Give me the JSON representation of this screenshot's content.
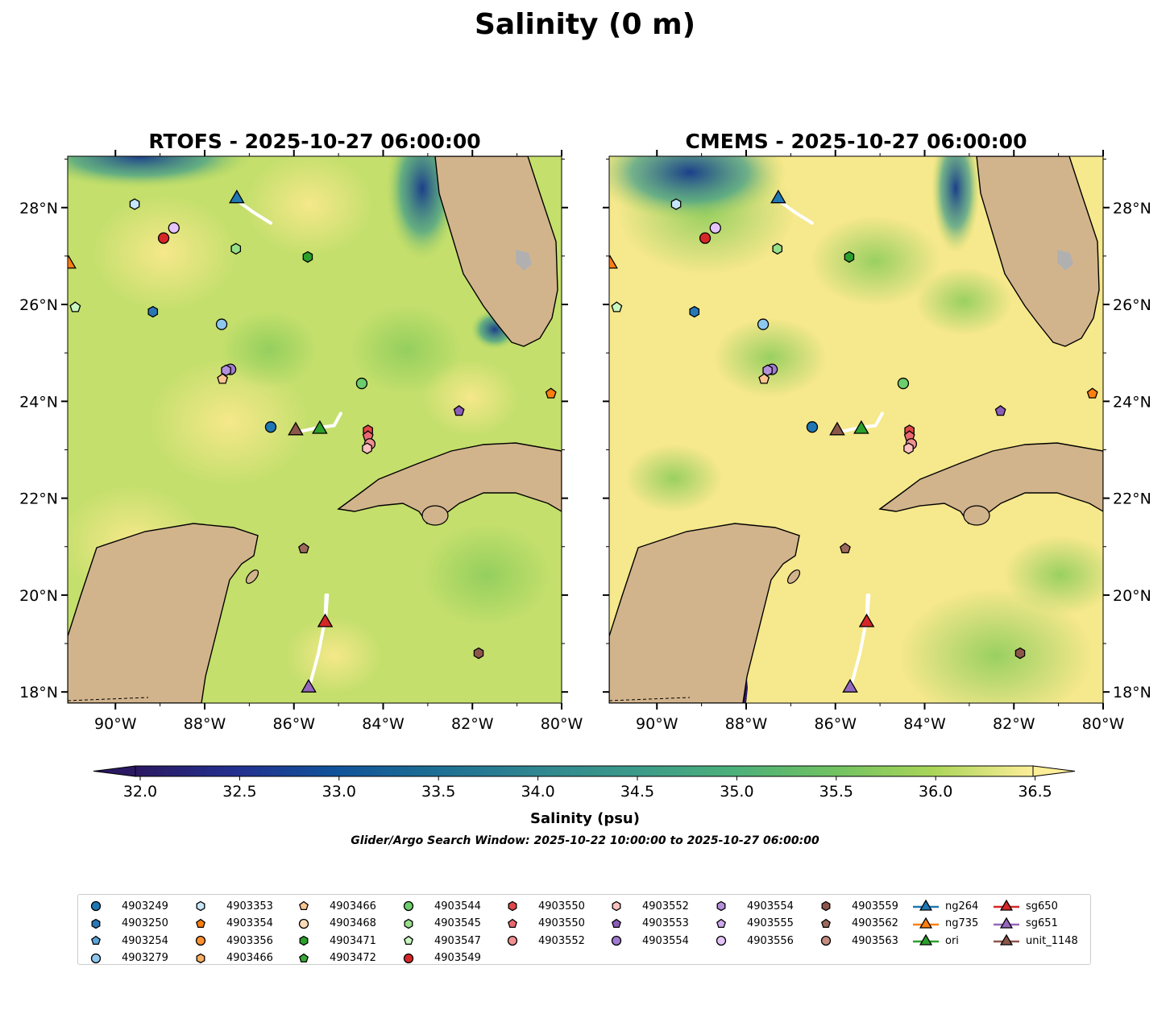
{
  "suptitle": "Salinity (0 m)",
  "window_note": "Glider/Argo Search Window: 2025-10-22 10:00:00 to 2025-10-27 06:00:00",
  "chart_data": [
    {
      "type": "map",
      "title": "RTOFS - 2025-10-27 06:00:00",
      "lon_range": [
        -91.07,
        -80
      ],
      "lat_range": [
        17.77,
        29.06
      ],
      "lon_ticks": [
        -90,
        -88,
        -86,
        -84,
        -82,
        -80
      ],
      "lat_ticks": [
        18,
        20,
        22,
        24,
        26,
        28
      ],
      "lon_tick_labels": [
        "90°W",
        "88°W",
        "86°W",
        "84°W",
        "82°W",
        "80°W"
      ],
      "lat_tick_labels": [
        "18°N",
        "20°N",
        "22°N",
        "24°N",
        "26°N",
        "28°N"
      ],
      "lat_label_side": "left"
    },
    {
      "type": "map",
      "title": "CMEMS - 2025-10-27 06:00:00",
      "lon_range": [
        -91.07,
        -80
      ],
      "lat_range": [
        17.77,
        29.06
      ],
      "lon_ticks": [
        -90,
        -88,
        -86,
        -84,
        -82,
        -80
      ],
      "lat_ticks": [
        18,
        20,
        22,
        24,
        26,
        28
      ],
      "lon_tick_labels": [
        "90°W",
        "88°W",
        "86°W",
        "84°W",
        "82°W",
        "80°W"
      ],
      "lat_tick_labels": [
        "18°N",
        "20°N",
        "22°N",
        "24°N",
        "26°N",
        "28°N"
      ],
      "lat_label_side": "right"
    }
  ],
  "colorbar": {
    "label": "Salinity (psu)",
    "min": 31.8,
    "max": 36.8,
    "ticks": [
      "32.0",
      "32.5",
      "33.0",
      "33.5",
      "34.0",
      "34.5",
      "35.0",
      "35.5",
      "36.0",
      "36.5"
    ],
    "colors": [
      "#2a1862",
      "#23308f",
      "#10539a",
      "#1d6e94",
      "#2f8590",
      "#3c9a8a",
      "#4cb07a",
      "#70c262",
      "#aad558",
      "#fdee99"
    ]
  },
  "platforms": [
    {
      "id": "4903249",
      "shape": "circle",
      "color": "#1f77b4",
      "lon": -86.52,
      "lat": 23.47
    },
    {
      "id": "4903250",
      "shape": "hexagon",
      "color": "#2878b8",
      "lon": -89.16,
      "lat": 25.85
    },
    {
      "id": "4903254",
      "shape": "pentagon",
      "color": "#5aa5d9",
      "lon": null,
      "lat": null
    },
    {
      "id": "4903279",
      "shape": "circle",
      "color": "#8ec7ee",
      "lon": -87.62,
      "lat": 25.59
    },
    {
      "id": "4903353",
      "shape": "hexagon",
      "color": "#c6e6fb",
      "lon": -89.57,
      "lat": 28.07
    },
    {
      "id": "4903354",
      "shape": "pentagon",
      "color": "#ff7f0e",
      "lon": -80.24,
      "lat": 24.16
    },
    {
      "id": "4903356",
      "shape": "circle",
      "color": "#ff9030",
      "lon": null,
      "lat": null
    },
    {
      "id": "4903466",
      "shape": "hexagon",
      "color": "#ffad60",
      "lon": null,
      "lat": null
    },
    {
      "id": "4903466",
      "shape": "pentagon",
      "color": "#ffc591",
      "lon": -87.6,
      "lat": 24.46
    },
    {
      "id": "4903468",
      "shape": "circle",
      "color": "#ffdcb8",
      "lon": null,
      "lat": null
    },
    {
      "id": "4903471",
      "shape": "hexagon",
      "color": "#2ca02c",
      "lon": -85.69,
      "lat": 26.98
    },
    {
      "id": "4903472",
      "shape": "pentagon",
      "color": "#3aa83a",
      "lon": null,
      "lat": null
    },
    {
      "id": "4903544",
      "shape": "circle",
      "color": "#6ccd6c",
      "lon": -84.48,
      "lat": 24.37
    },
    {
      "id": "4903545",
      "shape": "hexagon",
      "color": "#98df8a",
      "lon": -87.3,
      "lat": 27.15
    },
    {
      "id": "4903547",
      "shape": "pentagon",
      "color": "#c8f7c0",
      "lon": -90.9,
      "lat": 25.94
    },
    {
      "id": "4903549",
      "shape": "circle",
      "color": "#d62728",
      "lon": -88.92,
      "lat": 27.37
    },
    {
      "id": "4903550",
      "shape": "hexagon",
      "color": "#e04848",
      "lon": -84.34,
      "lat": 23.4
    },
    {
      "id": "4903550",
      "shape": "pentagon",
      "color": "#ea6870",
      "lon": -84.34,
      "lat": 23.28
    },
    {
      "id": "4903552",
      "shape": "circle",
      "color": "#f09090",
      "lon": -84.3,
      "lat": 23.12
    },
    {
      "id": "4903552",
      "shape": "hexagon",
      "color": "#ffc0c0",
      "lon": -84.36,
      "lat": 23.03
    },
    {
      "id": "4903553",
      "shape": "pentagon",
      "color": "#8c5db8",
      "lon": -82.3,
      "lat": 23.8
    },
    {
      "id": "4903554",
      "shape": "circle",
      "color": "#a07ad0",
      "lon": -87.42,
      "lat": 24.66
    },
    {
      "id": "4903554",
      "shape": "hexagon",
      "color": "#b490dc",
      "lon": -87.52,
      "lat": 24.64
    },
    {
      "id": "4903555",
      "shape": "pentagon",
      "color": "#d0a8ee",
      "lon": null,
      "lat": null
    },
    {
      "id": "4903556",
      "shape": "circle",
      "color": "#e4c4fa",
      "lon": -88.69,
      "lat": 27.58
    },
    {
      "id": "4903559",
      "shape": "hexagon",
      "color": "#8c564b",
      "lon": -81.86,
      "lat": 18.8
    },
    {
      "id": "4903562",
      "shape": "pentagon",
      "color": "#9c6a5c",
      "lon": -85.78,
      "lat": 20.96
    },
    {
      "id": "4903563",
      "shape": "circle",
      "color": "#c48c80",
      "lon": null,
      "lat": null
    }
  ],
  "gliders": [
    {
      "id": "ng264",
      "color": "#1f77b4",
      "lon": -87.28,
      "lat": 28.15,
      "track": [
        [
          -87.28,
          28.15
        ],
        [
          -86.9,
          27.9
        ],
        [
          -86.52,
          27.68
        ]
      ]
    },
    {
      "id": "ng735",
      "color": "#ff7f0e",
      "lon": -91.05,
      "lat": 26.8,
      "track": []
    },
    {
      "id": "ori",
      "color": "#2ca02c",
      "lon": -85.42,
      "lat": 23.39,
      "track": []
    },
    {
      "id": "sg650",
      "color": "#d62728",
      "lon": -85.3,
      "lat": 19.4,
      "track": [
        [
          -85.3,
          19.4
        ],
        [
          -85.25,
          20.0
        ]
      ]
    },
    {
      "id": "sg651",
      "color": "#9467bd",
      "lon": -85.67,
      "lat": 18.05,
      "track": [
        [
          -85.67,
          18.05
        ],
        [
          -85.45,
          18.8
        ],
        [
          -85.3,
          19.5
        ],
        [
          -85.28,
          20.0
        ]
      ]
    },
    {
      "id": "unit_1148",
      "color": "#8c564b",
      "lon": -85.96,
      "lat": 23.36,
      "track": [
        [
          -85.96,
          23.36
        ],
        [
          -85.5,
          23.45
        ],
        [
          -85.1,
          23.5
        ],
        [
          -84.95,
          23.75
        ]
      ]
    }
  ]
}
